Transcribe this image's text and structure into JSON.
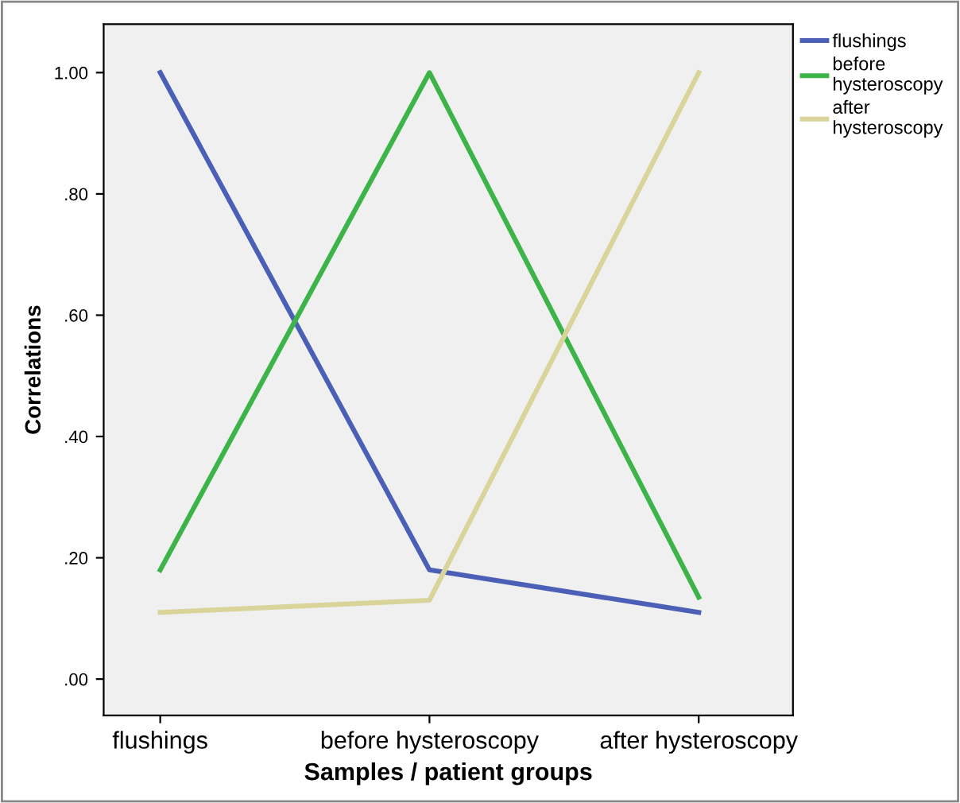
{
  "chart_data": {
    "type": "line",
    "xlabel": "Samples / patient groups",
    "ylabel": "Correlations",
    "categories": [
      "flushings",
      "before hysteroscopy",
      "after hysteroscopy"
    ],
    "series": [
      {
        "name": "flushings",
        "color": "#4a5fb5",
        "values": [
          1.0,
          0.18,
          0.11
        ]
      },
      {
        "name": "before\nhysteroscopy",
        "color": "#3cb44a",
        "values": [
          0.18,
          1.0,
          0.135
        ]
      },
      {
        "name": "after\nhysteroscopy",
        "color": "#d9d49a",
        "values": [
          0.11,
          0.13,
          1.0
        ]
      }
    ],
    "ylim": [
      -0.06,
      1.08
    ],
    "yticks": [
      {
        "value": 0,
        "label": ".00"
      },
      {
        "value": 0.2,
        "label": ".20"
      },
      {
        "value": 0.4,
        "label": ".40"
      },
      {
        "value": 0.6,
        "label": ".60"
      },
      {
        "value": 0.8,
        "label": ".80"
      },
      {
        "value": 1.0,
        "label": "1.00"
      }
    ],
    "grid": false,
    "legend": "top right",
    "marker": "none",
    "line_style": "solid"
  }
}
